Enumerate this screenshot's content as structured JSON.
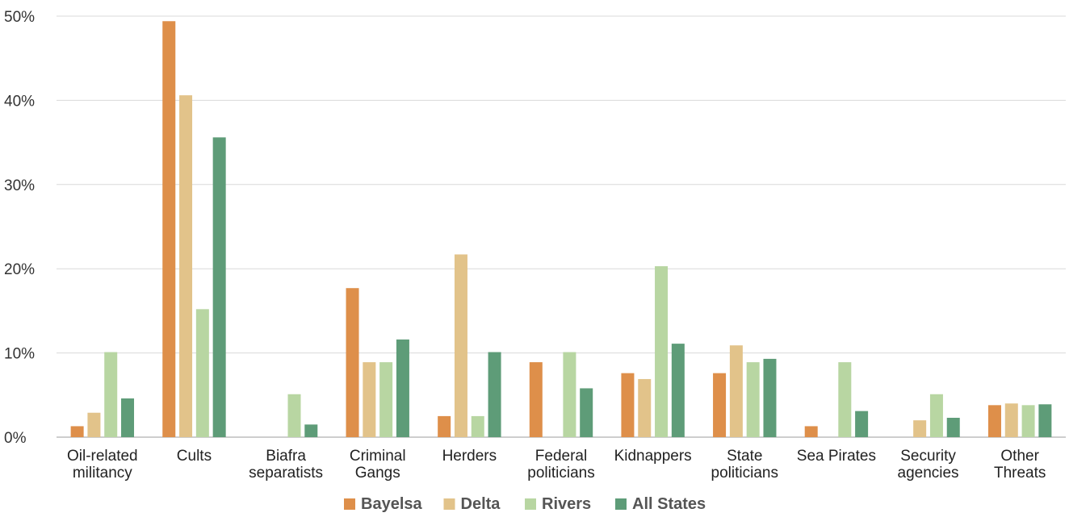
{
  "chart_data": {
    "type": "bar",
    "categories": [
      [
        "Oil-related",
        "militancy"
      ],
      [
        "Cults"
      ],
      [
        "Biafra",
        "separatists"
      ],
      [
        "Criminal",
        "Gangs"
      ],
      [
        "Herders"
      ],
      [
        "Federal",
        "politicians"
      ],
      [
        "Kidnappers"
      ],
      [
        "State",
        "politicians"
      ],
      [
        "Sea Pirates"
      ],
      [
        "Security",
        "agencies"
      ],
      [
        "Other",
        "Threats"
      ]
    ],
    "series": [
      {
        "name": "Bayelsa",
        "color": "#DE8F4A",
        "values": [
          1.3,
          49.4,
          0,
          17.7,
          2.5,
          8.9,
          7.6,
          7.6,
          1.3,
          0,
          3.8
        ]
      },
      {
        "name": "Delta",
        "color": "#E2C38A",
        "values": [
          2.9,
          40.6,
          0,
          8.9,
          21.7,
          0,
          6.9,
          10.9,
          0,
          2.0,
          4.0
        ]
      },
      {
        "name": "Rivers",
        "color": "#B8D6A2",
        "values": [
          10.1,
          15.2,
          5.1,
          8.9,
          2.5,
          10.1,
          20.3,
          8.9,
          8.9,
          5.1,
          3.8
        ]
      },
      {
        "name": "All States",
        "color": "#5E9C78",
        "values": [
          4.6,
          35.6,
          1.5,
          11.6,
          10.1,
          5.8,
          11.1,
          9.3,
          3.1,
          2.3,
          3.9
        ]
      }
    ],
    "ylim": [
      0,
      50
    ],
    "yticks": [
      "0%",
      "10%",
      "20%",
      "30%",
      "40%",
      "50%"
    ],
    "grid": true,
    "legend_position": "bottom"
  }
}
